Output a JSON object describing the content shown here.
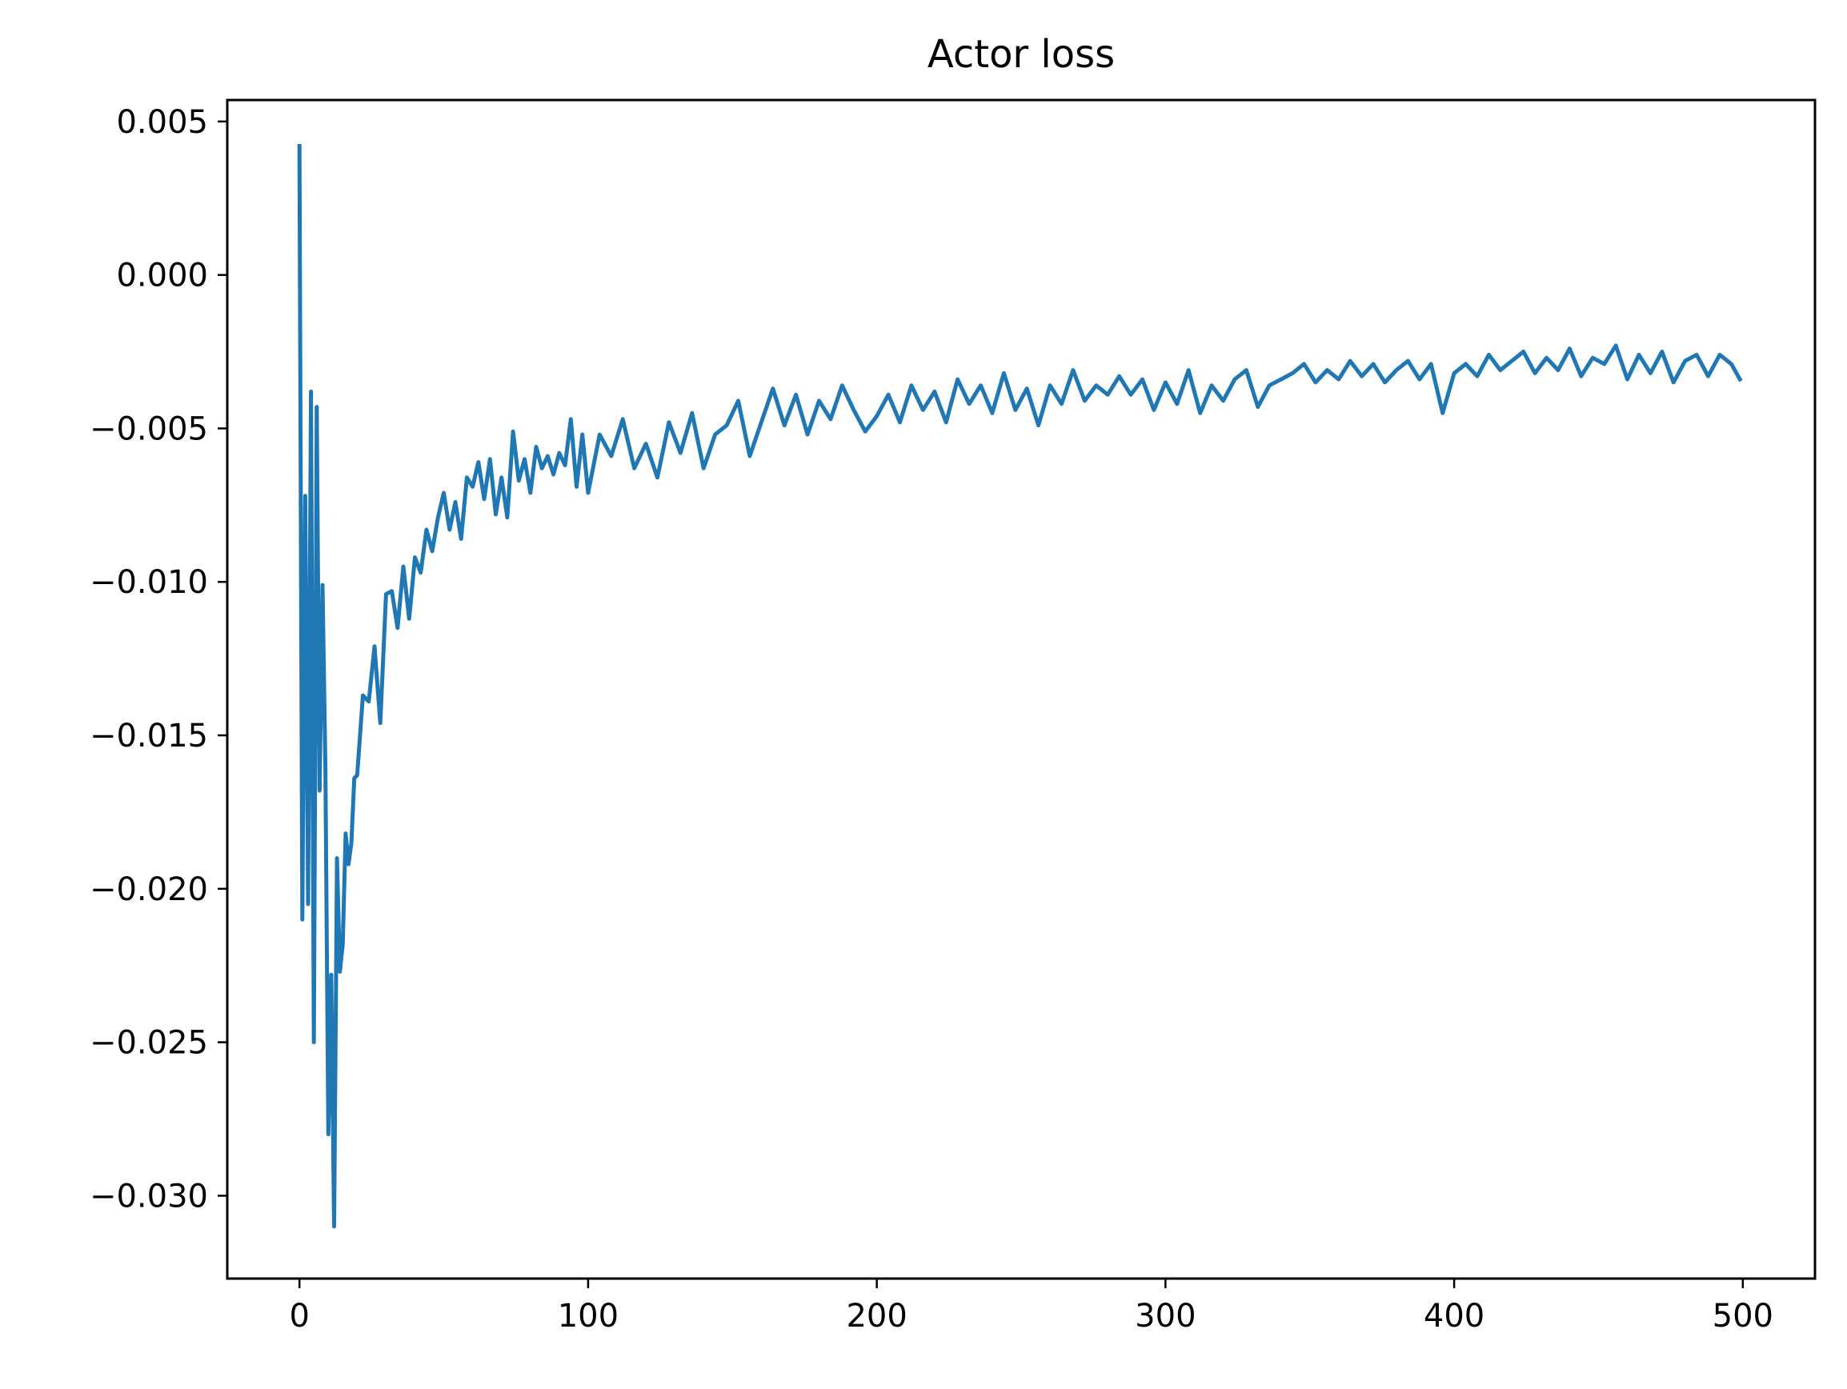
{
  "chart_data": {
    "type": "line",
    "title": "Actor loss",
    "xlabel": "",
    "ylabel": "",
    "xlim": [
      -25,
      525
    ],
    "ylim": [
      -0.0327,
      0.0057
    ],
    "grid": false,
    "legend": "none",
    "x_ticks": [
      {
        "value": 0,
        "label": "0"
      },
      {
        "value": 100,
        "label": "100"
      },
      {
        "value": 200,
        "label": "200"
      },
      {
        "value": 300,
        "label": "300"
      },
      {
        "value": 400,
        "label": "400"
      },
      {
        "value": 500,
        "label": "500"
      }
    ],
    "y_ticks": [
      {
        "value": 0.005,
        "label": "0.005"
      },
      {
        "value": 0.0,
        "label": "0.000"
      },
      {
        "value": -0.005,
        "label": "−0.005"
      },
      {
        "value": -0.01,
        "label": "−0.010"
      },
      {
        "value": -0.015,
        "label": "−0.015"
      },
      {
        "value": -0.02,
        "label": "−0.020"
      },
      {
        "value": -0.025,
        "label": "−0.025"
      },
      {
        "value": -0.03,
        "label": "−0.030"
      }
    ],
    "series": [
      {
        "color": "#1f77b4",
        "x": [
          0,
          1,
          2,
          3,
          4,
          5,
          6,
          7,
          8,
          9,
          10,
          11,
          12,
          13,
          14,
          15,
          16,
          17,
          18,
          19,
          20,
          22,
          24,
          26,
          28,
          30,
          32,
          34,
          36,
          38,
          40,
          42,
          44,
          46,
          48,
          50,
          52,
          54,
          56,
          58,
          60,
          62,
          64,
          66,
          68,
          70,
          72,
          74,
          76,
          78,
          80,
          82,
          84,
          86,
          88,
          90,
          92,
          94,
          96,
          98,
          100,
          104,
          108,
          112,
          116,
          120,
          124,
          128,
          132,
          136,
          140,
          144,
          148,
          152,
          156,
          160,
          164,
          168,
          172,
          176,
          180,
          184,
          188,
          192,
          196,
          200,
          204,
          208,
          212,
          216,
          220,
          224,
          228,
          232,
          236,
          240,
          244,
          248,
          252,
          256,
          260,
          264,
          268,
          272,
          276,
          280,
          284,
          288,
          292,
          296,
          300,
          304,
          308,
          312,
          316,
          320,
          324,
          328,
          332,
          336,
          340,
          344,
          348,
          352,
          356,
          360,
          364,
          368,
          372,
          376,
          380,
          384,
          388,
          392,
          396,
          400,
          404,
          408,
          412,
          416,
          420,
          424,
          428,
          432,
          436,
          440,
          444,
          448,
          452,
          456,
          460,
          464,
          468,
          472,
          476,
          480,
          484,
          488,
          492,
          496,
          499
        ],
        "y": [
          0.0042,
          -0.021,
          -0.0072,
          -0.0205,
          -0.0038,
          -0.025,
          -0.0043,
          -0.0168,
          -0.0101,
          -0.016,
          -0.028,
          -0.0228,
          -0.031,
          -0.019,
          -0.0227,
          -0.0218,
          -0.0182,
          -0.0192,
          -0.0185,
          -0.0164,
          -0.0163,
          -0.0137,
          -0.0139,
          -0.0121,
          -0.0146,
          -0.0104,
          -0.0103,
          -0.0115,
          -0.0095,
          -0.0112,
          -0.0092,
          -0.0097,
          -0.0083,
          -0.009,
          -0.0079,
          -0.0071,
          -0.0083,
          -0.0074,
          -0.0086,
          -0.0066,
          -0.0069,
          -0.0061,
          -0.0073,
          -0.006,
          -0.0078,
          -0.0066,
          -0.0079,
          -0.0051,
          -0.0067,
          -0.006,
          -0.0071,
          -0.0056,
          -0.0063,
          -0.0059,
          -0.0065,
          -0.0058,
          -0.0062,
          -0.0047,
          -0.0069,
          -0.0052,
          -0.0071,
          -0.0052,
          -0.0059,
          -0.0047,
          -0.0063,
          -0.0055,
          -0.0066,
          -0.0048,
          -0.0058,
          -0.0045,
          -0.0063,
          -0.0052,
          -0.0049,
          -0.0041,
          -0.0059,
          -0.0048,
          -0.0037,
          -0.0049,
          -0.0039,
          -0.0052,
          -0.0041,
          -0.0047,
          -0.0036,
          -0.0044,
          -0.0051,
          -0.0046,
          -0.0039,
          -0.0048,
          -0.0036,
          -0.0044,
          -0.0038,
          -0.0048,
          -0.0034,
          -0.0042,
          -0.0036,
          -0.0045,
          -0.0032,
          -0.0044,
          -0.0037,
          -0.0049,
          -0.0036,
          -0.0042,
          -0.0031,
          -0.0041,
          -0.0036,
          -0.0039,
          -0.0033,
          -0.0039,
          -0.0034,
          -0.0044,
          -0.0035,
          -0.0042,
          -0.0031,
          -0.0045,
          -0.0036,
          -0.0041,
          -0.0034,
          -0.0031,
          -0.0043,
          -0.0036,
          -0.0034,
          -0.0032,
          -0.0029,
          -0.0035,
          -0.0031,
          -0.0034,
          -0.0028,
          -0.0033,
          -0.0029,
          -0.0035,
          -0.0031,
          -0.0028,
          -0.0034,
          -0.0029,
          -0.0045,
          -0.0032,
          -0.0029,
          -0.0033,
          -0.0026,
          -0.0031,
          -0.0028,
          -0.0025,
          -0.0032,
          -0.0027,
          -0.0031,
          -0.0024,
          -0.0033,
          -0.0027,
          -0.0029,
          -0.0023,
          -0.0034,
          -0.0026,
          -0.0032,
          -0.0025,
          -0.0035,
          -0.0028,
          -0.0026,
          -0.0033,
          -0.0026,
          -0.0029,
          -0.0034
        ]
      }
    ]
  }
}
